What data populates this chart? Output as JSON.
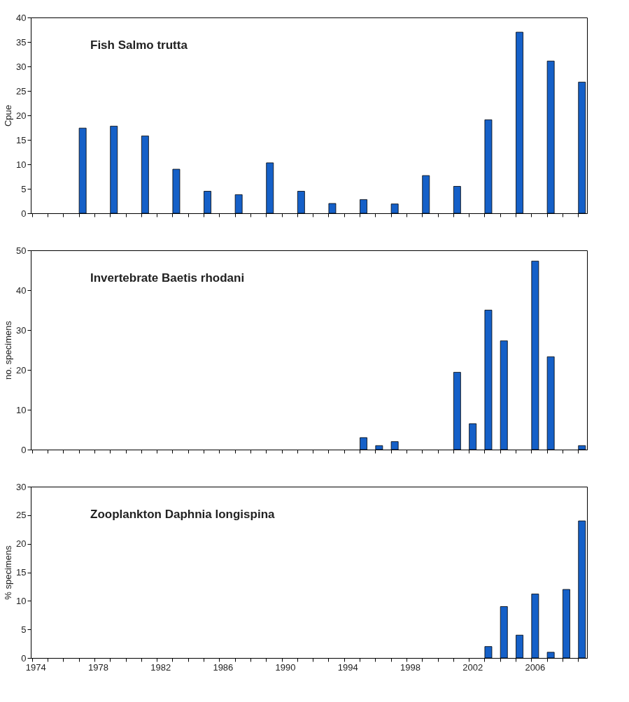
{
  "chart_data": [
    {
      "type": "bar",
      "title": "Fish Salmo trutta",
      "ylabel": "Cpue",
      "categories": [
        "1974",
        null,
        null,
        null,
        "1978",
        null,
        null,
        null,
        "1982",
        null,
        null,
        null,
        "1986",
        null,
        null,
        null,
        "1990",
        null,
        null,
        null,
        "1994",
        null,
        null,
        null,
        "1998",
        null,
        null,
        null,
        "2002",
        null,
        null,
        null,
        "2006",
        null,
        null,
        null
      ],
      "values": [
        null,
        null,
        null,
        17.4,
        null,
        17.8,
        null,
        15.8,
        null,
        9.0,
        null,
        4.5,
        null,
        3.8,
        null,
        10.3,
        null,
        4.5,
        null,
        2.0,
        null,
        2.8,
        null,
        1.9,
        null,
        7.7,
        null,
        5.5,
        null,
        19.1,
        null,
        37.0,
        null,
        31.1,
        null,
        26.8
      ],
      "color": "#1560c8",
      "ylim": [
        0,
        40
      ],
      "yticks": [
        0,
        5,
        10,
        15,
        20,
        25,
        30,
        35,
        40
      ],
      "tick_labels": "y"
    },
    {
      "type": "bar",
      "title": "Invertebrate Baetis rhodani",
      "ylabel": "no. specimens",
      "categories": [
        "1974",
        null,
        null,
        null,
        "1978",
        null,
        null,
        null,
        "1982",
        null,
        null,
        null,
        "1986",
        null,
        null,
        null,
        "1990",
        null,
        null,
        null,
        "1994",
        null,
        null,
        null,
        "1998",
        null,
        null,
        null,
        "2002",
        null,
        null,
        null,
        "2006",
        null,
        null,
        null
      ],
      "values": [
        null,
        null,
        null,
        null,
        null,
        null,
        null,
        null,
        null,
        null,
        null,
        null,
        null,
        null,
        null,
        null,
        null,
        null,
        null,
        null,
        null,
        3,
        1,
        2,
        null,
        null,
        null,
        19.4,
        6.5,
        35,
        27.3,
        null,
        47.3,
        23.3,
        null,
        1
      ],
      "color": "#1560c8",
      "ylim": [
        0,
        50
      ],
      "yticks": [
        0,
        10,
        20,
        30,
        40,
        50
      ],
      "tick_labels": "y"
    },
    {
      "type": "bar",
      "title": "Zooplankton Daphnia longispina",
      "ylabel": "% specimens",
      "categories": [
        "1974",
        null,
        null,
        null,
        "1978",
        null,
        null,
        null,
        "1982",
        null,
        null,
        null,
        "1986",
        null,
        null,
        null,
        "1990",
        null,
        null,
        null,
        "1994",
        null,
        null,
        null,
        "1998",
        null,
        null,
        null,
        "2002",
        null,
        null,
        null,
        "2006",
        null,
        null,
        null
      ],
      "values": [
        null,
        null,
        null,
        null,
        null,
        null,
        null,
        null,
        null,
        null,
        null,
        null,
        null,
        null,
        null,
        null,
        null,
        null,
        null,
        null,
        null,
        null,
        null,
        null,
        null,
        null,
        null,
        null,
        null,
        2,
        9,
        4,
        11.2,
        1,
        12,
        24
      ],
      "color": "#1560c8",
      "ylim": [
        0,
        30
      ],
      "yticks": [
        0,
        5,
        10,
        15,
        20,
        25,
        30
      ]
    }
  ]
}
